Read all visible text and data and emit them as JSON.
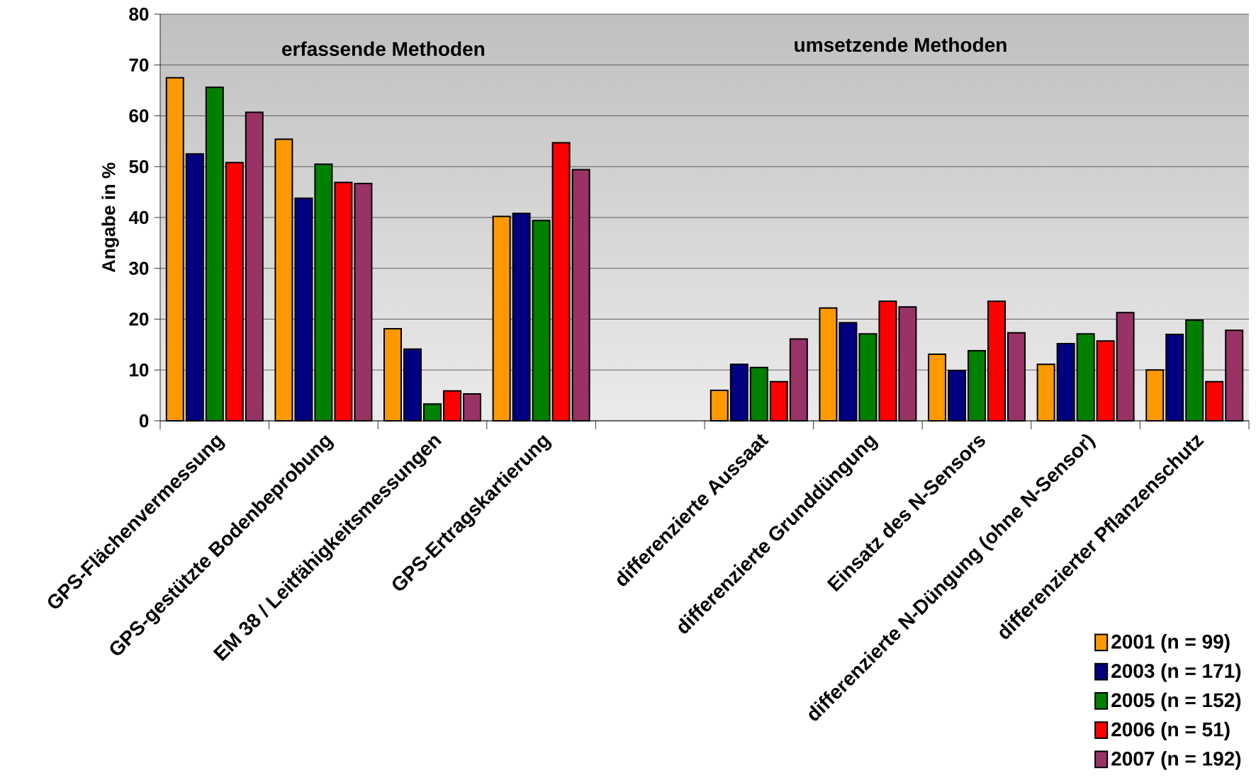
{
  "chart_data": {
    "type": "bar",
    "ylabel": "Angabe in %",
    "categories": [
      "GPS-Flächenvermessung",
      "GPS-gestützte Bodenbeprobung",
      "EM 38 / Leitfähigkeitsmessungen",
      "GPS-Ertragskartierung",
      null,
      "differenzierte Aussaat",
      "differenzierte Grunddüngung",
      "Einsatz des N-Sensors",
      "differenzierte N-Düngung (ohne N-Sensor)",
      "differenzierter Pflanzenschutz"
    ],
    "series": [
      {
        "name": "2001 (n = 99)",
        "color": "#ff9900",
        "values": [
          67.5,
          55.4,
          18.1,
          40.2,
          null,
          6.0,
          22.2,
          13.1,
          11.1,
          10.0
        ]
      },
      {
        "name": "2003 (n = 171)",
        "color": "#000080",
        "values": [
          52.5,
          43.8,
          14.1,
          40.8,
          null,
          11.1,
          19.3,
          9.9,
          15.2,
          17.0
        ]
      },
      {
        "name": "2005 (n = 152)",
        "color": "#008000",
        "values": [
          65.6,
          50.5,
          3.3,
          39.4,
          null,
          10.5,
          17.1,
          13.8,
          17.1,
          19.8
        ]
      },
      {
        "name": "2006 (n = 51)",
        "color": "#ff0000",
        "values": [
          50.8,
          46.9,
          5.9,
          54.7,
          null,
          7.7,
          23.5,
          23.5,
          15.7,
          7.7
        ]
      },
      {
        "name": "2007 (n = 192)",
        "color": "#993366",
        "values": [
          60.7,
          46.7,
          5.3,
          49.4,
          null,
          16.1,
          22.4,
          17.3,
          21.3,
          17.8
        ]
      }
    ],
    "ylim": [
      0,
      80
    ],
    "yticks": [
      0,
      10,
      20,
      30,
      40,
      50,
      60,
      70,
      80
    ],
    "grid": "y",
    "legend": "bottom right",
    "annotations": [
      "erfassende Methoden",
      "umsetzende Methoden"
    ]
  }
}
